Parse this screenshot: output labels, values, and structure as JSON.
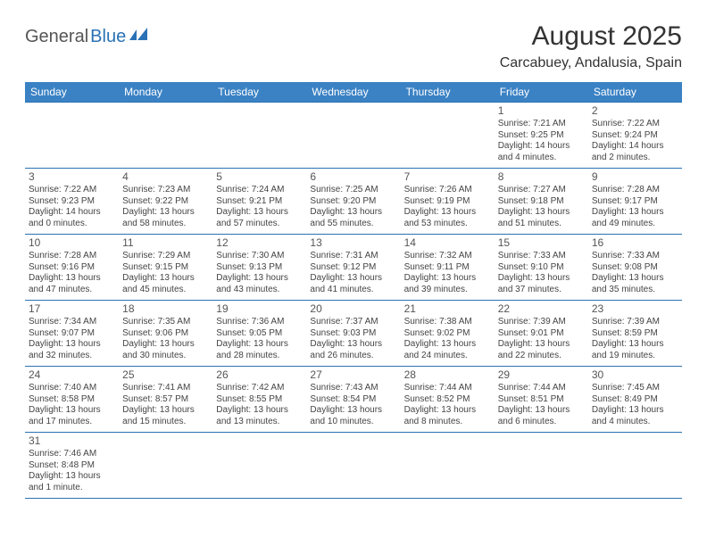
{
  "logo": {
    "part1": "General",
    "part2": "Blue"
  },
  "title": "August 2025",
  "location": "Carcabuey, Andalusia, Spain",
  "colors": {
    "header_bg": "#3b82c4",
    "border": "#2a72b5",
    "text": "#444"
  },
  "weekdays": [
    "Sunday",
    "Monday",
    "Tuesday",
    "Wednesday",
    "Thursday",
    "Friday",
    "Saturday"
  ],
  "weeks": [
    [
      null,
      null,
      null,
      null,
      null,
      {
        "n": "1",
        "sr": "7:21 AM",
        "ss": "9:25 PM",
        "dl": "14 hours and 4 minutes."
      },
      {
        "n": "2",
        "sr": "7:22 AM",
        "ss": "9:24 PM",
        "dl": "14 hours and 2 minutes."
      }
    ],
    [
      {
        "n": "3",
        "sr": "7:22 AM",
        "ss": "9:23 PM",
        "dl": "14 hours and 0 minutes."
      },
      {
        "n": "4",
        "sr": "7:23 AM",
        "ss": "9:22 PM",
        "dl": "13 hours and 58 minutes."
      },
      {
        "n": "5",
        "sr": "7:24 AM",
        "ss": "9:21 PM",
        "dl": "13 hours and 57 minutes."
      },
      {
        "n": "6",
        "sr": "7:25 AM",
        "ss": "9:20 PM",
        "dl": "13 hours and 55 minutes."
      },
      {
        "n": "7",
        "sr": "7:26 AM",
        "ss": "9:19 PM",
        "dl": "13 hours and 53 minutes."
      },
      {
        "n": "8",
        "sr": "7:27 AM",
        "ss": "9:18 PM",
        "dl": "13 hours and 51 minutes."
      },
      {
        "n": "9",
        "sr": "7:28 AM",
        "ss": "9:17 PM",
        "dl": "13 hours and 49 minutes."
      }
    ],
    [
      {
        "n": "10",
        "sr": "7:28 AM",
        "ss": "9:16 PM",
        "dl": "13 hours and 47 minutes."
      },
      {
        "n": "11",
        "sr": "7:29 AM",
        "ss": "9:15 PM",
        "dl": "13 hours and 45 minutes."
      },
      {
        "n": "12",
        "sr": "7:30 AM",
        "ss": "9:13 PM",
        "dl": "13 hours and 43 minutes."
      },
      {
        "n": "13",
        "sr": "7:31 AM",
        "ss": "9:12 PM",
        "dl": "13 hours and 41 minutes."
      },
      {
        "n": "14",
        "sr": "7:32 AM",
        "ss": "9:11 PM",
        "dl": "13 hours and 39 minutes."
      },
      {
        "n": "15",
        "sr": "7:33 AM",
        "ss": "9:10 PM",
        "dl": "13 hours and 37 minutes."
      },
      {
        "n": "16",
        "sr": "7:33 AM",
        "ss": "9:08 PM",
        "dl": "13 hours and 35 minutes."
      }
    ],
    [
      {
        "n": "17",
        "sr": "7:34 AM",
        "ss": "9:07 PM",
        "dl": "13 hours and 32 minutes."
      },
      {
        "n": "18",
        "sr": "7:35 AM",
        "ss": "9:06 PM",
        "dl": "13 hours and 30 minutes."
      },
      {
        "n": "19",
        "sr": "7:36 AM",
        "ss": "9:05 PM",
        "dl": "13 hours and 28 minutes."
      },
      {
        "n": "20",
        "sr": "7:37 AM",
        "ss": "9:03 PM",
        "dl": "13 hours and 26 minutes."
      },
      {
        "n": "21",
        "sr": "7:38 AM",
        "ss": "9:02 PM",
        "dl": "13 hours and 24 minutes."
      },
      {
        "n": "22",
        "sr": "7:39 AM",
        "ss": "9:01 PM",
        "dl": "13 hours and 22 minutes."
      },
      {
        "n": "23",
        "sr": "7:39 AM",
        "ss": "8:59 PM",
        "dl": "13 hours and 19 minutes."
      }
    ],
    [
      {
        "n": "24",
        "sr": "7:40 AM",
        "ss": "8:58 PM",
        "dl": "13 hours and 17 minutes."
      },
      {
        "n": "25",
        "sr": "7:41 AM",
        "ss": "8:57 PM",
        "dl": "13 hours and 15 minutes."
      },
      {
        "n": "26",
        "sr": "7:42 AM",
        "ss": "8:55 PM",
        "dl": "13 hours and 13 minutes."
      },
      {
        "n": "27",
        "sr": "7:43 AM",
        "ss": "8:54 PM",
        "dl": "13 hours and 10 minutes."
      },
      {
        "n": "28",
        "sr": "7:44 AM",
        "ss": "8:52 PM",
        "dl": "13 hours and 8 minutes."
      },
      {
        "n": "29",
        "sr": "7:44 AM",
        "ss": "8:51 PM",
        "dl": "13 hours and 6 minutes."
      },
      {
        "n": "30",
        "sr": "7:45 AM",
        "ss": "8:49 PM",
        "dl": "13 hours and 4 minutes."
      }
    ],
    [
      {
        "n": "31",
        "sr": "7:46 AM",
        "ss": "8:48 PM",
        "dl": "13 hours and 1 minute."
      },
      null,
      null,
      null,
      null,
      null,
      null
    ]
  ]
}
